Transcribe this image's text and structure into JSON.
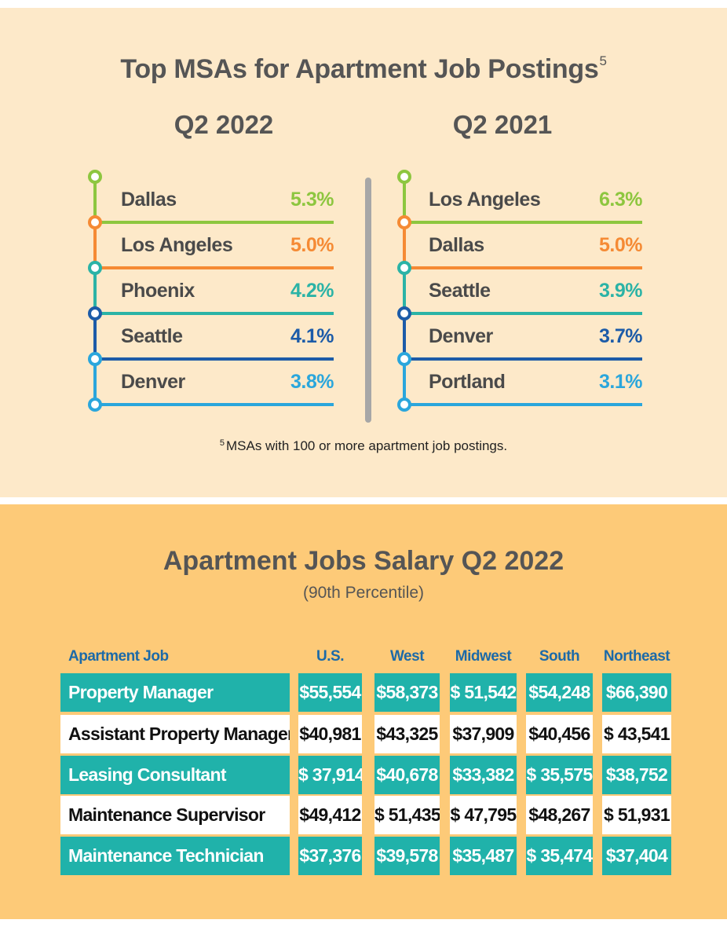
{
  "msa_section": {
    "title": "Top MSAs for Apartment Job Postings",
    "title_superscript": "5",
    "footnote_marker": "5",
    "footnote": "MSAs with 100 or more apartment job postings.",
    "colors": [
      "#8dc63f",
      "#f58a34",
      "#2bb3a6",
      "#1c5ba8",
      "#2aa6dc"
    ]
  },
  "salary_section": {
    "title": "Apartment Jobs Salary Q2 2022",
    "subtitle": "(90th Percentile)"
  },
  "chart_data": [
    {
      "type": "table",
      "title": "Top MSAs for Apartment Job Postings",
      "series": [
        {
          "name": "Q2 2022",
          "categories": [
            "Dallas",
            "Los Angeles",
            "Phoenix",
            "Seattle",
            "Denver"
          ],
          "labels": [
            "5.3%",
            "5.0%",
            "4.2%",
            "4.1%",
            "3.8%"
          ],
          "values": [
            5.3,
            5.0,
            4.2,
            4.1,
            3.8
          ]
        },
        {
          "name": "Q2 2021",
          "categories": [
            "Los Angeles",
            "Dallas",
            "Seattle",
            "Denver",
            "Portland"
          ],
          "labels": [
            "6.3%",
            "5.0%",
            "3.9%",
            "3.7%",
            "3.1%"
          ],
          "values": [
            6.3,
            5.0,
            3.9,
            3.7,
            3.1
          ]
        }
      ]
    },
    {
      "type": "table",
      "title": "Apartment Jobs Salary Q2 2022",
      "subtitle": "(90th Percentile)",
      "columns": [
        "Apartment Job",
        "U.S.",
        "West",
        "Midwest",
        "South",
        "Northeast"
      ],
      "rows": [
        [
          "Property Manager",
          "$55,554",
          "$58,373",
          "$ 51,542",
          "$54,248",
          "$66,390"
        ],
        [
          "Assistant Property Manager",
          "$40,981",
          "$43,325",
          "$37,909",
          "$40,456",
          "$ 43,541"
        ],
        [
          "Leasing Consultant",
          "$ 37,914",
          "$40,678",
          "$33,382",
          "$ 35,575",
          "$38,752"
        ],
        [
          "Maintenance Supervisor",
          "$49,412",
          "$ 51,435",
          "$ 47,795",
          "$48,267",
          "$  51,931"
        ],
        [
          "Maintenance Technician",
          "$37,376",
          "$39,578",
          "$35,487",
          "$ 35,474",
          "$37,404"
        ]
      ]
    }
  ]
}
